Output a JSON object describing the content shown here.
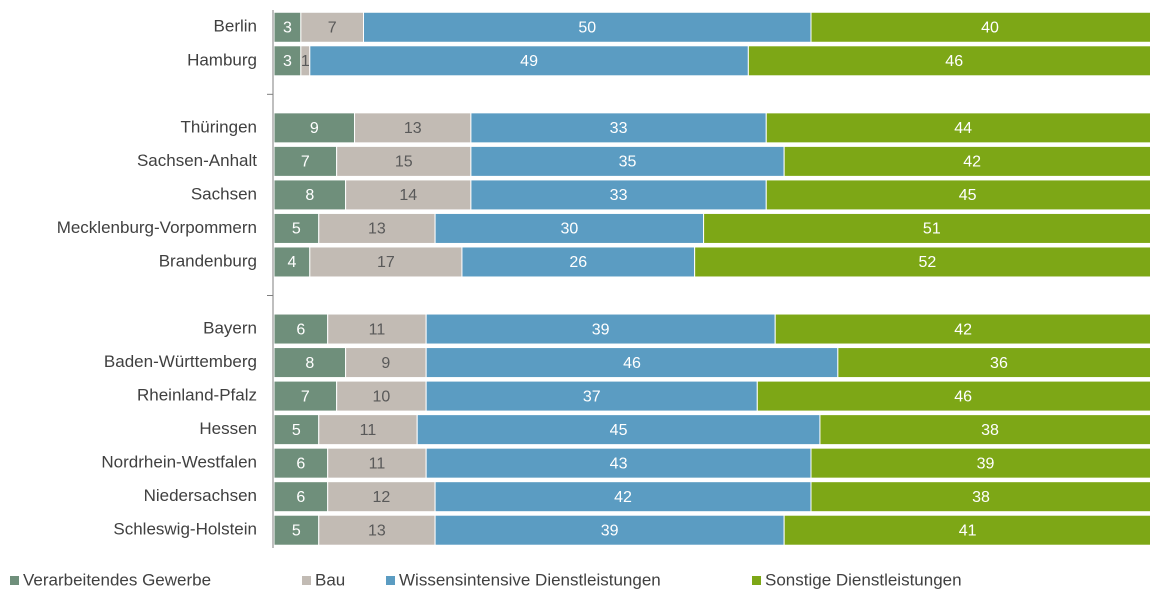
{
  "chart_data": {
    "type": "stacked-bar-horizontal",
    "categories": [
      "Berlin",
      "Hamburg",
      null,
      "Thüringen",
      "Sachsen-Anhalt",
      "Sachsen",
      "Mecklenburg-Vorpommern",
      "Brandenburg",
      null,
      "Bayern",
      "Baden-Württemberg",
      "Rheinland-Pfalz",
      "Hessen",
      "Nordrhein-Westfalen",
      "Niedersachsen",
      "Schleswig-Holstein"
    ],
    "series": [
      {
        "name": "Verarbeitendes Gewerbe",
        "color": "#6f8f7b",
        "values": [
          3,
          3,
          null,
          9,
          7,
          8,
          5,
          4,
          null,
          6,
          8,
          7,
          5,
          6,
          6,
          5
        ]
      },
      {
        "name": "Bau",
        "color": "#c2bbb4",
        "values": [
          7,
          1,
          null,
          13,
          15,
          14,
          13,
          17,
          null,
          11,
          9,
          10,
          11,
          11,
          12,
          13
        ]
      },
      {
        "name": "Wissensintensive Dienstleistungen",
        "color": "#5b9cc2",
        "values": [
          50,
          49,
          null,
          33,
          35,
          33,
          30,
          26,
          null,
          39,
          46,
          37,
          45,
          43,
          42,
          39
        ]
      },
      {
        "name": "Sonstige Dienstleistungen",
        "color": "#7da716",
        "values": [
          40,
          46,
          null,
          44,
          42,
          45,
          51,
          52,
          null,
          42,
          36,
          46,
          38,
          39,
          38,
          41
        ]
      }
    ],
    "legend": "bottom"
  }
}
